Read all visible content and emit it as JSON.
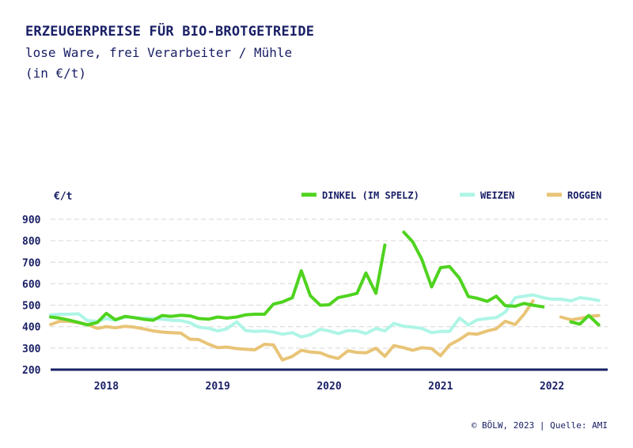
{
  "header": {
    "title": "ERZEUGERPREISE FÜR BIO-BROTGETREIDE",
    "subtitle": "lose Ware, frei Verarbeiter / Mühle",
    "unit_line": "(in €/t)"
  },
  "footer": {
    "source": "© BÖLW, 2023 | Quelle: AMI"
  },
  "chart_data": {
    "type": "line",
    "ylabel": "€/t",
    "ylim": [
      200,
      900
    ],
    "yticks": [
      900,
      800,
      700,
      600,
      500,
      400,
      300,
      200
    ],
    "xlim": [
      2017.5,
      2022.5
    ],
    "xticks": [
      {
        "label": "2018",
        "value": 2018
      },
      {
        "label": "2019",
        "value": 2019
      },
      {
        "label": "2020",
        "value": 2020
      },
      {
        "label": "2021",
        "value": 2021
      },
      {
        "label": "2022",
        "value": 2022
      }
    ],
    "grid": true,
    "legend_position": "top-right",
    "series": [
      {
        "name": "DINKEL (IM SPELZ)",
        "color": "#4fd31f",
        "segments": [
          [
            [
              2017.5,
              445
            ],
            [
              2017.58,
              440
            ],
            [
              2017.67,
              430
            ],
            [
              2017.75,
              420
            ],
            [
              2017.83,
              408
            ],
            [
              2017.92,
              420
            ],
            [
              2018.0,
              462
            ],
            [
              2018.08,
              432
            ],
            [
              2018.17,
              448
            ],
            [
              2018.25,
              442
            ],
            [
              2018.33,
              435
            ],
            [
              2018.42,
              430
            ],
            [
              2018.5,
              452
            ],
            [
              2018.58,
              448
            ],
            [
              2018.67,
              453
            ],
            [
              2018.75,
              450
            ],
            [
              2018.83,
              438
            ],
            [
              2018.92,
              435
            ],
            [
              2019.0,
              445
            ],
            [
              2019.08,
              440
            ],
            [
              2019.17,
              445
            ],
            [
              2019.25,
              455
            ],
            [
              2019.33,
              458
            ],
            [
              2019.42,
              458
            ],
            [
              2019.5,
              505
            ],
            [
              2019.58,
              515
            ],
            [
              2019.67,
              535
            ],
            [
              2019.75,
              660
            ],
            [
              2019.83,
              545
            ],
            [
              2019.92,
              500
            ],
            [
              2020.0,
              502
            ],
            [
              2020.08,
              535
            ],
            [
              2020.17,
              545
            ],
            [
              2020.25,
              555
            ],
            [
              2020.33,
              650
            ],
            [
              2020.42,
              555
            ],
            [
              2020.5,
              780
            ]
          ],
          [
            [
              2020.67,
              840
            ],
            [
              2020.75,
              795
            ],
            [
              2020.83,
              715
            ],
            [
              2020.92,
              585
            ],
            [
              2021.0,
              675
            ],
            [
              2021.08,
              680
            ],
            [
              2021.17,
              625
            ],
            [
              2021.25,
              540
            ],
            [
              2021.33,
              532
            ],
            [
              2021.42,
              518
            ],
            [
              2021.5,
              542
            ],
            [
              2021.58,
              498
            ],
            [
              2021.67,
              495
            ],
            [
              2021.75,
              508
            ],
            [
              2021.83,
              500
            ],
            [
              2021.92,
              492
            ]
          ],
          [
            [
              2022.17,
              422
            ],
            [
              2022.25,
              412
            ],
            [
              2022.33,
              452
            ],
            [
              2022.42,
              408
            ]
          ]
        ]
      },
      {
        "name": "WEIZEN",
        "color": "#aef5e6",
        "segments": [
          [
            [
              2017.5,
              455
            ],
            [
              2017.58,
              458
            ],
            [
              2017.67,
              458
            ],
            [
              2017.75,
              460
            ],
            [
              2017.83,
              428
            ],
            [
              2017.92,
              425
            ],
            [
              2018.0,
              438
            ],
            [
              2018.08,
              430
            ],
            [
              2018.17,
              445
            ],
            [
              2018.25,
              442
            ],
            [
              2018.33,
              440
            ],
            [
              2018.42,
              438
            ],
            [
              2018.5,
              435
            ],
            [
              2018.58,
              430
            ],
            [
              2018.67,
              428
            ],
            [
              2018.75,
              418
            ],
            [
              2018.83,
              398
            ],
            [
              2018.92,
              392
            ],
            [
              2019.0,
              380
            ],
            [
              2019.08,
              390
            ],
            [
              2019.17,
              422
            ],
            [
              2019.25,
              382
            ],
            [
              2019.33,
              378
            ],
            [
              2019.42,
              380
            ],
            [
              2019.5,
              375
            ],
            [
              2019.58,
              365
            ],
            [
              2019.67,
              372
            ],
            [
              2019.75,
              352
            ],
            [
              2019.83,
              362
            ],
            [
              2019.92,
              388
            ],
            [
              2020.0,
              380
            ],
            [
              2020.08,
              368
            ],
            [
              2020.17,
              382
            ],
            [
              2020.25,
              380
            ],
            [
              2020.33,
              368
            ],
            [
              2020.42,
              392
            ],
            [
              2020.5,
              380
            ],
            [
              2020.58,
              415
            ],
            [
              2020.67,
              402
            ],
            [
              2020.75,
              398
            ],
            [
              2020.83,
              392
            ],
            [
              2020.92,
              372
            ],
            [
              2021.0,
              378
            ],
            [
              2021.08,
              378
            ],
            [
              2021.17,
              440
            ],
            [
              2021.25,
              408
            ],
            [
              2021.33,
              432
            ],
            [
              2021.42,
              438
            ],
            [
              2021.5,
              442
            ],
            [
              2021.58,
              468
            ],
            [
              2021.67,
              535
            ],
            [
              2021.75,
              542
            ],
            [
              2021.83,
              548
            ],
            [
              2021.92,
              535
            ],
            [
              2022.0,
              528
            ],
            [
              2022.08,
              528
            ],
            [
              2022.17,
              520
            ],
            [
              2022.25,
              535
            ],
            [
              2022.33,
              530
            ],
            [
              2022.42,
              522
            ]
          ]
        ]
      },
      {
        "name": "ROGGEN",
        "color": "#e8c477",
        "segments": [
          [
            [
              2017.5,
              410
            ],
            [
              2017.58,
              425
            ],
            [
              2017.67,
              425
            ],
            [
              2017.75,
              418
            ],
            [
              2017.83,
              410
            ],
            [
              2017.92,
              392
            ],
            [
              2018.0,
              400
            ],
            [
              2018.08,
              395
            ],
            [
              2018.17,
              402
            ],
            [
              2018.25,
              398
            ],
            [
              2018.33,
              390
            ],
            [
              2018.42,
              380
            ],
            [
              2018.5,
              375
            ],
            [
              2018.58,
              372
            ],
            [
              2018.67,
              370
            ],
            [
              2018.75,
              342
            ],
            [
              2018.83,
              340
            ],
            [
              2018.92,
              318
            ],
            [
              2019.0,
              302
            ],
            [
              2019.08,
              305
            ],
            [
              2019.17,
              298
            ],
            [
              2019.25,
              295
            ],
            [
              2019.33,
              292
            ],
            [
              2019.42,
              318
            ],
            [
              2019.5,
              315
            ],
            [
              2019.58,
              245
            ],
            [
              2019.67,
              262
            ],
            [
              2019.75,
              290
            ],
            [
              2019.83,
              282
            ],
            [
              2019.92,
              278
            ],
            [
              2020.0,
              262
            ],
            [
              2020.08,
              252
            ],
            [
              2020.17,
              288
            ],
            [
              2020.25,
              280
            ],
            [
              2020.33,
              278
            ],
            [
              2020.42,
              300
            ],
            [
              2020.5,
              262
            ],
            [
              2020.58,
              312
            ],
            [
              2020.67,
              302
            ],
            [
              2020.75,
              290
            ],
            [
              2020.83,
              302
            ],
            [
              2020.92,
              298
            ],
            [
              2021.0,
              265
            ],
            [
              2021.08,
              315
            ],
            [
              2021.17,
              340
            ],
            [
              2021.25,
              368
            ],
            [
              2021.33,
              365
            ],
            [
              2021.42,
              380
            ],
            [
              2021.5,
              390
            ],
            [
              2021.58,
              425
            ],
            [
              2021.67,
              410
            ],
            [
              2021.75,
              458
            ],
            [
              2021.83,
              520
            ]
          ],
          [
            [
              2022.08,
              445
            ],
            [
              2022.17,
              432
            ],
            [
              2022.25,
              438
            ],
            [
              2022.33,
              448
            ],
            [
              2022.42,
              452
            ]
          ]
        ]
      }
    ]
  }
}
